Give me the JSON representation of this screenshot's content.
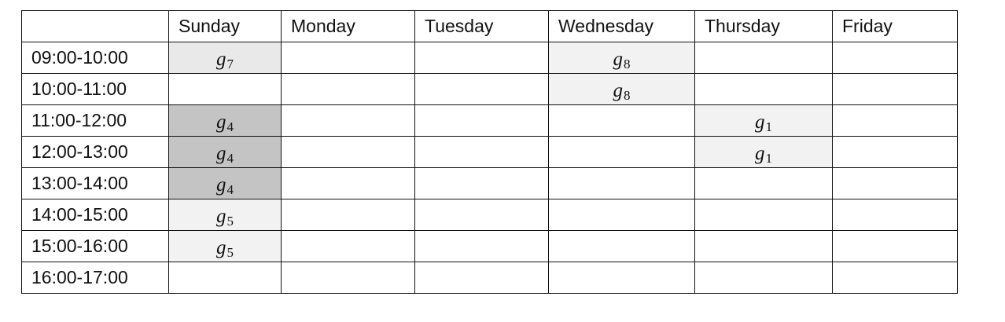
{
  "columns": [
    "",
    "Sunday",
    "Monday",
    "Tuesday",
    "Wednesday",
    "Thursday",
    "Friday"
  ],
  "rows": [
    {
      "time": "09:00-10:00",
      "cells": [
        {
          "g": "g",
          "s": "7",
          "shade": "mid"
        },
        null,
        null,
        {
          "g": "g",
          "s": "8",
          "shade": "light"
        },
        null,
        null
      ]
    },
    {
      "time": "10:00-11:00",
      "cells": [
        null,
        null,
        null,
        {
          "g": "g",
          "s": "8",
          "shade": "light"
        },
        null,
        null
      ]
    },
    {
      "time": "11:00-12:00",
      "cells": [
        {
          "g": "g",
          "s": "4",
          "shade": "dark"
        },
        null,
        null,
        null,
        {
          "g": "g",
          "s": "1",
          "shade": "light"
        },
        null
      ]
    },
    {
      "time": "12:00-13:00",
      "cells": [
        {
          "g": "g",
          "s": "4",
          "shade": "dark"
        },
        null,
        null,
        null,
        {
          "g": "g",
          "s": "1",
          "shade": "light"
        },
        null
      ]
    },
    {
      "time": "13:00-14:00",
      "cells": [
        {
          "g": "g",
          "s": "4",
          "shade": "dark"
        },
        null,
        null,
        null,
        null,
        null
      ]
    },
    {
      "time": "14:00-15:00",
      "cells": [
        {
          "g": "g",
          "s": "5",
          "shade": "light"
        },
        null,
        null,
        null,
        null,
        null
      ]
    },
    {
      "time": "15:00-16:00",
      "cells": [
        {
          "g": "g",
          "s": "5",
          "shade": "light"
        },
        null,
        null,
        null,
        null,
        null
      ]
    },
    {
      "time": "16:00-17:00",
      "cells": [
        null,
        null,
        null,
        null,
        null,
        null
      ]
    }
  ],
  "colors": {
    "light": "#f2f2f2",
    "mid": "#e9e9e9",
    "dark": "#c4c4c4",
    "border": "#111111"
  }
}
